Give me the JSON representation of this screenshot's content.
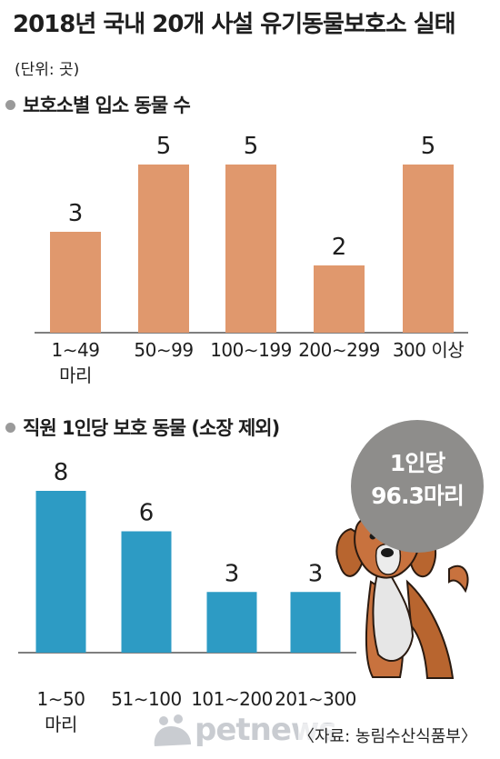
{
  "title": "2018년 국내 20개 사설 유기동물보호소 실태",
  "unit": "(단위: 곳)",
  "colors": {
    "bar1": "#e0986d",
    "bar2": "#2d9bc4",
    "baseline": "#555555",
    "badge": "#8e8d8b"
  },
  "badge": {
    "line1": "1인당",
    "line2": "96.3마리"
  },
  "source": "〈자료: 농림수산식품부〉",
  "logo_text": "petnews",
  "chart_data": [
    {
      "type": "bar",
      "title": "보호소별 입소 동물 수",
      "categories": [
        "1∼49\n마리",
        "50∼99",
        "100∼199",
        "200∼299",
        "300 이상"
      ],
      "values": [
        3,
        5,
        5,
        2,
        5
      ],
      "ylim": [
        0,
        5
      ]
    },
    {
      "type": "bar",
      "title": "직원 1인당 보호 동물 (소장 제외)",
      "categories": [
        "1∼50\n마리",
        "51∼100",
        "101∼200",
        "201∼300"
      ],
      "values": [
        8,
        6,
        3,
        3
      ],
      "ylim": [
        0,
        8
      ]
    }
  ]
}
